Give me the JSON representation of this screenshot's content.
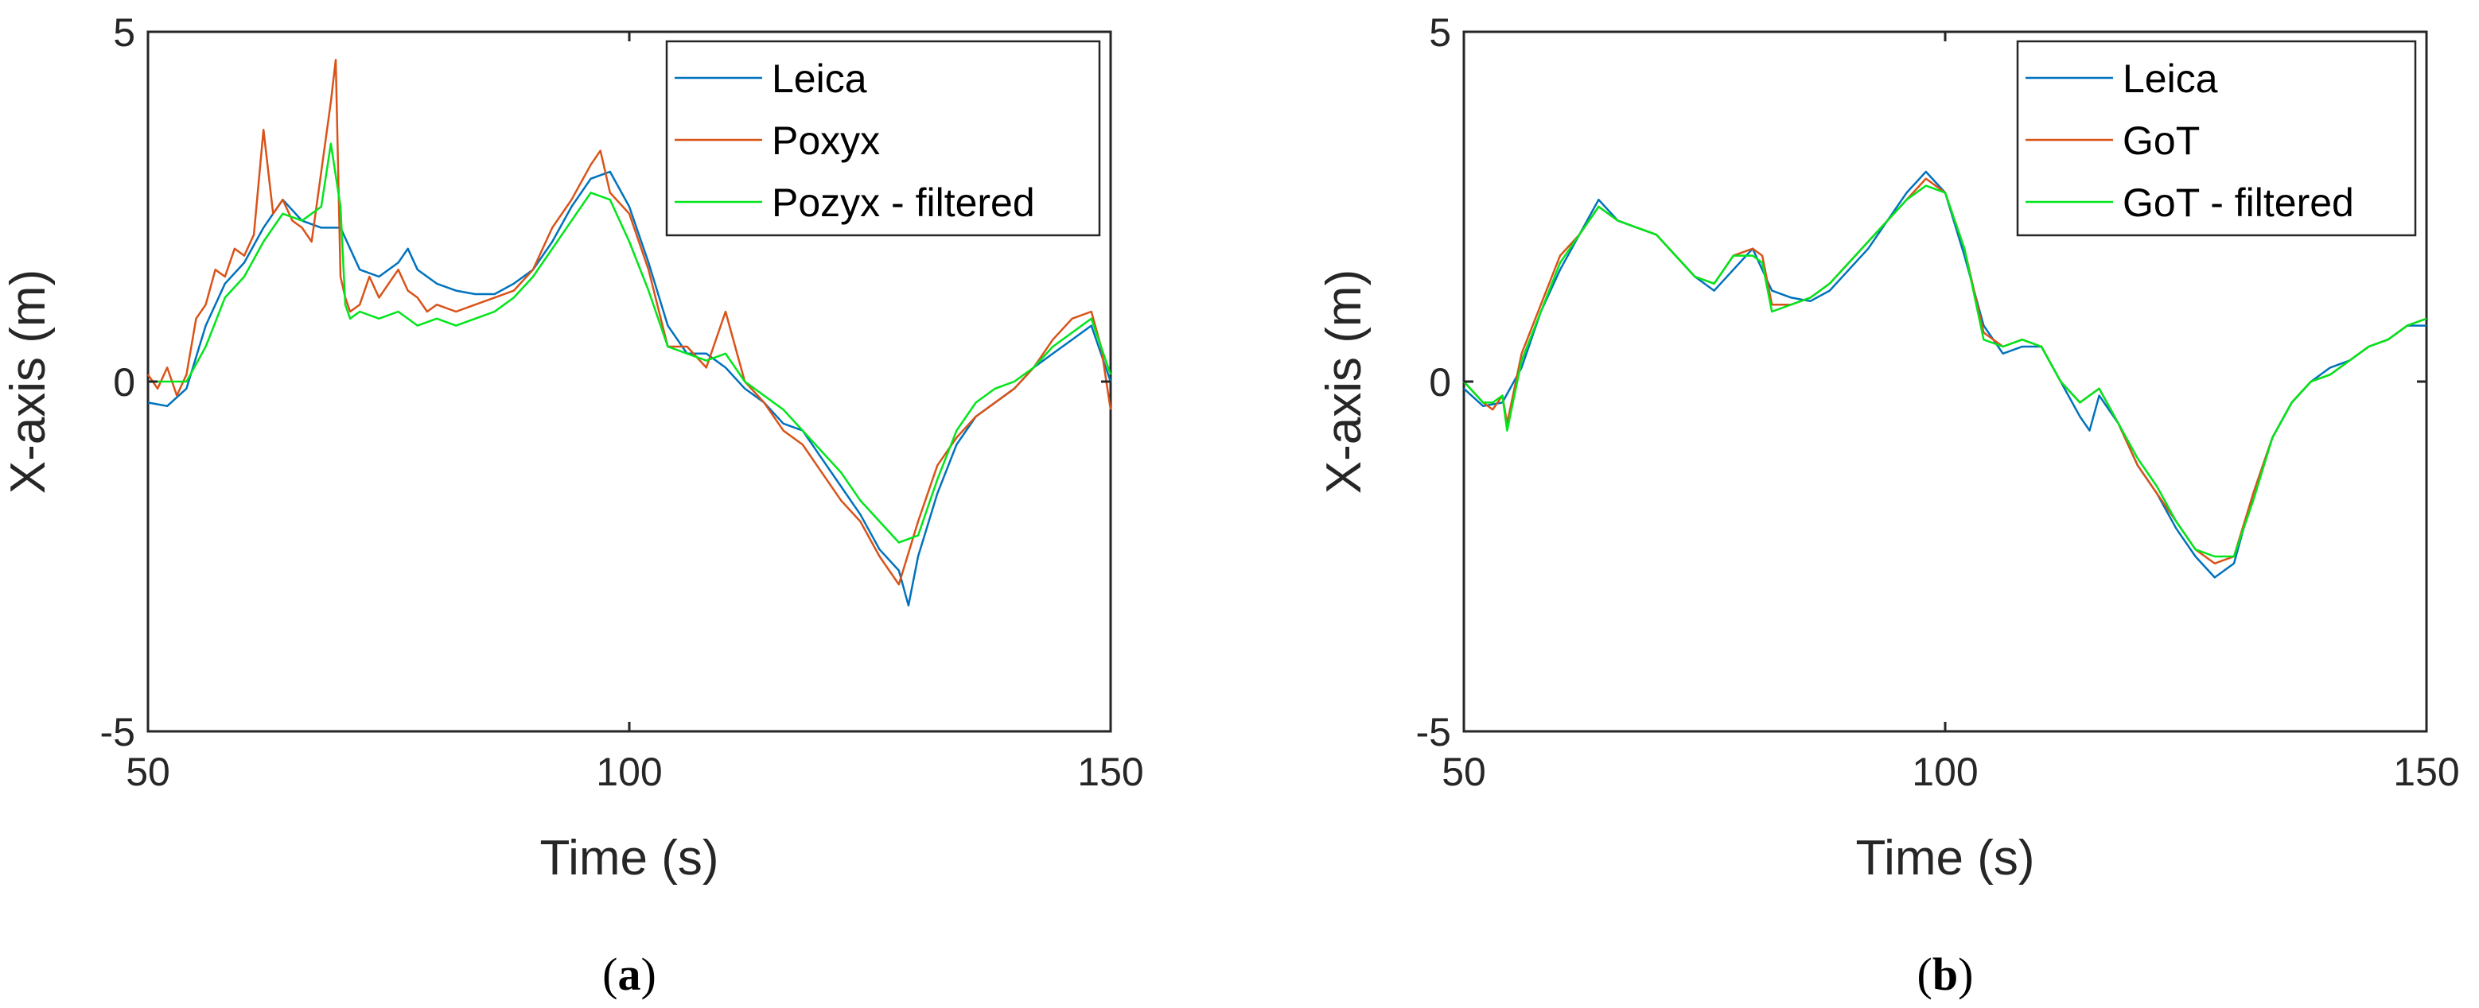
{
  "chart_data": [
    {
      "type": "line",
      "panel_label": "a",
      "title": "",
      "xlabel": "Time (s)",
      "ylabel": "X-axis (m)",
      "xlim": [
        50,
        150
      ],
      "ylim": [
        -5,
        5
      ],
      "xticks": [
        50,
        100,
        150
      ],
      "yticks": [
        -5,
        0,
        5
      ],
      "xtick_labels": [
        "50",
        "100",
        "150"
      ],
      "ytick_labels": [
        "-5",
        "0",
        "5"
      ],
      "grid": false,
      "legend_position": "top-right",
      "series": [
        {
          "name": "Leica",
          "color": "#0072BD",
          "x": [
            50,
            52,
            54,
            56,
            58,
            60,
            62,
            64,
            66,
            68,
            70,
            72,
            74,
            76,
            77,
            78,
            80,
            82,
            84,
            86,
            88,
            90,
            92,
            94,
            96,
            98,
            100,
            102,
            104,
            106,
            108,
            110,
            112,
            114,
            116,
            118,
            120,
            122,
            124,
            126,
            128,
            129,
            130,
            132,
            134,
            136,
            138,
            140,
            142,
            144,
            146,
            148,
            150
          ],
          "y": [
            -0.3,
            -0.35,
            -0.1,
            0.8,
            1.4,
            1.7,
            2.2,
            2.6,
            2.3,
            2.2,
            2.2,
            1.6,
            1.5,
            1.7,
            1.9,
            1.6,
            1.4,
            1.3,
            1.25,
            1.25,
            1.4,
            1.6,
            2.0,
            2.5,
            2.9,
            3.0,
            2.5,
            1.7,
            0.8,
            0.4,
            0.4,
            0.2,
            -0.1,
            -0.3,
            -0.6,
            -0.7,
            -1.1,
            -1.5,
            -1.9,
            -2.4,
            -2.7,
            -3.2,
            -2.5,
            -1.6,
            -0.9,
            -0.5,
            -0.3,
            -0.1,
            0.2,
            0.4,
            0.6,
            0.8,
            0.0
          ]
        },
        {
          "name": "Poxyx",
          "color": "#D95319",
          "x": [
            50,
            51,
            52,
            53,
            54,
            55,
            56,
            57,
            58,
            59,
            60,
            61,
            62,
            63,
            64,
            65,
            66,
            67,
            68,
            69,
            69.5,
            70,
            70.5,
            71,
            72,
            73,
            74,
            75,
            76,
            77,
            78,
            79,
            80,
            82,
            84,
            86,
            88,
            90,
            92,
            94,
            96,
            97,
            98,
            100,
            102,
            104,
            106,
            108,
            110,
            112,
            114,
            116,
            118,
            120,
            122,
            124,
            126,
            128,
            130,
            132,
            134,
            136,
            138,
            140,
            142,
            144,
            146,
            148,
            149,
            150
          ],
          "y": [
            0.1,
            -0.1,
            0.2,
            -0.2,
            0.1,
            0.9,
            1.1,
            1.6,
            1.5,
            1.9,
            1.8,
            2.1,
            3.6,
            2.4,
            2.6,
            2.3,
            2.2,
            2.0,
            3.0,
            4.0,
            4.6,
            1.5,
            1.2,
            1.0,
            1.1,
            1.5,
            1.2,
            1.4,
            1.6,
            1.3,
            1.2,
            1.0,
            1.1,
            1.0,
            1.1,
            1.2,
            1.3,
            1.6,
            2.2,
            2.6,
            3.1,
            3.3,
            2.7,
            2.4,
            1.6,
            0.5,
            0.5,
            0.2,
            1.0,
            0.0,
            -0.3,
            -0.7,
            -0.9,
            -1.3,
            -1.7,
            -2.0,
            -2.5,
            -2.9,
            -2.0,
            -1.2,
            -0.8,
            -0.5,
            -0.3,
            -0.1,
            0.2,
            0.6,
            0.9,
            1.0,
            0.5,
            -0.4
          ]
        },
        {
          "name": "Pozyx - filtered",
          "color": "#00E61A",
          "x": [
            50,
            52,
            54,
            56,
            58,
            60,
            62,
            64,
            66,
            68,
            69,
            70,
            70.5,
            71,
            72,
            74,
            76,
            78,
            80,
            82,
            84,
            86,
            88,
            90,
            92,
            94,
            96,
            98,
            100,
            102,
            104,
            106,
            108,
            110,
            112,
            114,
            116,
            118,
            120,
            122,
            124,
            126,
            128,
            130,
            132,
            134,
            136,
            138,
            140,
            142,
            144,
            146,
            148,
            150
          ],
          "y": [
            0.0,
            0.0,
            0.0,
            0.5,
            1.2,
            1.5,
            2.0,
            2.4,
            2.3,
            2.5,
            3.4,
            2.5,
            1.1,
            0.9,
            1.0,
            0.9,
            1.0,
            0.8,
            0.9,
            0.8,
            0.9,
            1.0,
            1.2,
            1.5,
            1.9,
            2.3,
            2.7,
            2.6,
            2.0,
            1.3,
            0.5,
            0.4,
            0.3,
            0.4,
            0.0,
            -0.2,
            -0.4,
            -0.7,
            -1.0,
            -1.3,
            -1.7,
            -2.0,
            -2.3,
            -2.2,
            -1.4,
            -0.7,
            -0.3,
            -0.1,
            0.0,
            0.2,
            0.5,
            0.7,
            0.9,
            0.1
          ]
        }
      ]
    },
    {
      "type": "line",
      "panel_label": "b",
      "title": "",
      "xlabel": "Time (s)",
      "ylabel": "X-axis (m)",
      "xlim": [
        50,
        150
      ],
      "ylim": [
        -5,
        5
      ],
      "xticks": [
        50,
        100,
        150
      ],
      "yticks": [
        -5,
        0,
        5
      ],
      "xtick_labels": [
        "50",
        "100",
        "150"
      ],
      "ytick_labels": [
        "-5",
        "0",
        "5"
      ],
      "grid": false,
      "legend_position": "top-right",
      "series": [
        {
          "name": "Leica",
          "color": "#0072BD",
          "x": [
            50,
            52,
            54,
            56,
            58,
            60,
            62,
            64,
            66,
            68,
            70,
            72,
            74,
            76,
            78,
            80,
            82,
            84,
            86,
            88,
            90,
            92,
            94,
            96,
            98,
            100,
            102,
            104,
            106,
            108,
            110,
            112,
            114,
            115,
            116,
            118,
            120,
            122,
            124,
            126,
            128,
            130,
            132,
            134,
            136,
            138,
            140,
            142,
            144,
            146,
            148,
            150
          ],
          "y": [
            -0.1,
            -0.35,
            -0.3,
            0.2,
            1.0,
            1.6,
            2.1,
            2.6,
            2.3,
            2.2,
            2.1,
            1.8,
            1.5,
            1.3,
            1.6,
            1.9,
            1.3,
            1.2,
            1.15,
            1.3,
            1.6,
            1.9,
            2.3,
            2.7,
            3.0,
            2.7,
            1.8,
            0.8,
            0.4,
            0.5,
            0.5,
            0.0,
            -0.5,
            -0.7,
            -0.2,
            -0.6,
            -1.2,
            -1.6,
            -2.1,
            -2.5,
            -2.8,
            -2.6,
            -1.6,
            -0.8,
            -0.3,
            0.0,
            0.2,
            0.3,
            0.5,
            0.6,
            0.8,
            0.8
          ]
        },
        {
          "name": "GoT",
          "color": "#D95319",
          "x": [
            50,
            52,
            53,
            54,
            54.5,
            56,
            58,
            60,
            62,
            64,
            66,
            68,
            70,
            72,
            74,
            76,
            78,
            80,
            81,
            82,
            84,
            86,
            88,
            90,
            92,
            94,
            96,
            98,
            100,
            102,
            104,
            106,
            108,
            110,
            112,
            114,
            116,
            118,
            120,
            122,
            124,
            126,
            128,
            130,
            132,
            134,
            136,
            138,
            140,
            142,
            144,
            146,
            148,
            150
          ],
          "y": [
            0.0,
            -0.3,
            -0.4,
            -0.2,
            -0.6,
            0.4,
            1.1,
            1.8,
            2.1,
            2.5,
            2.3,
            2.2,
            2.1,
            1.8,
            1.5,
            1.4,
            1.8,
            1.9,
            1.8,
            1.1,
            1.1,
            1.2,
            1.4,
            1.7,
            2.0,
            2.3,
            2.6,
            2.9,
            2.7,
            1.9,
            0.7,
            0.5,
            0.6,
            0.5,
            0.0,
            -0.3,
            -0.1,
            -0.6,
            -1.2,
            -1.6,
            -2.0,
            -2.4,
            -2.6,
            -2.5,
            -1.6,
            -0.8,
            -0.3,
            0.0,
            0.1,
            0.3,
            0.5,
            0.6,
            0.8,
            0.9
          ]
        },
        {
          "name": "GoT - filtered",
          "color": "#00E61A",
          "x": [
            50,
            52,
            53,
            54,
            54.5,
            56,
            58,
            60,
            62,
            64,
            66,
            68,
            70,
            72,
            74,
            76,
            78,
            80,
            81,
            82,
            84,
            86,
            88,
            90,
            92,
            94,
            96,
            98,
            100,
            102,
            104,
            106,
            108,
            110,
            112,
            114,
            116,
            118,
            120,
            122,
            124,
            126,
            128,
            130,
            132,
            134,
            136,
            138,
            140,
            142,
            144,
            146,
            148,
            150
          ],
          "y": [
            0.0,
            -0.3,
            -0.3,
            -0.2,
            -0.7,
            0.3,
            1.0,
            1.7,
            2.1,
            2.5,
            2.3,
            2.2,
            2.1,
            1.8,
            1.5,
            1.4,
            1.8,
            1.8,
            1.7,
            1.0,
            1.1,
            1.2,
            1.4,
            1.7,
            2.0,
            2.3,
            2.6,
            2.8,
            2.7,
            1.9,
            0.6,
            0.5,
            0.6,
            0.5,
            0.0,
            -0.3,
            -0.1,
            -0.6,
            -1.1,
            -1.5,
            -2.0,
            -2.4,
            -2.5,
            -2.5,
            -1.7,
            -0.8,
            -0.3,
            0.0,
            0.1,
            0.3,
            0.5,
            0.6,
            0.8,
            0.9
          ]
        }
      ]
    }
  ],
  "captions": [
    "a",
    "b"
  ]
}
